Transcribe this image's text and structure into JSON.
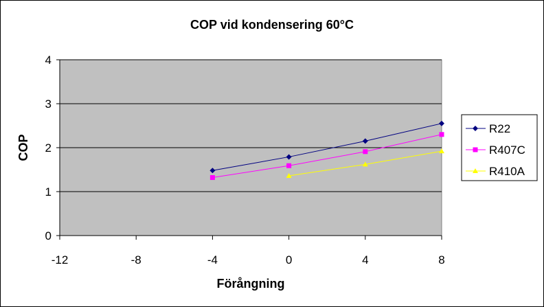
{
  "chart_data": {
    "type": "line",
    "title": "COP vid kondensering 60°C",
    "xlabel": "Förångning",
    "ylabel": "COP",
    "xlim": [
      -12,
      8
    ],
    "ylim": [
      0,
      4
    ],
    "xticks": [
      "-12",
      "-8",
      "-4",
      "0",
      "4",
      "8"
    ],
    "yticks": [
      "0",
      "1",
      "2",
      "3",
      "4"
    ],
    "grid": true,
    "legend_position": "right",
    "plot_background": "#c0c0c0",
    "series": [
      {
        "name": "R22",
        "color": "#000080",
        "marker": "diamond",
        "x": [
          -4,
          0,
          4,
          8
        ],
        "values": [
          1.48,
          1.79,
          2.15,
          2.55
        ]
      },
      {
        "name": "R407C",
        "color": "#ff00ff",
        "marker": "square",
        "x": [
          -4,
          0,
          4,
          8
        ],
        "values": [
          1.32,
          1.59,
          1.91,
          2.3
        ]
      },
      {
        "name": "R410A",
        "color": "#ffff00",
        "marker": "triangle",
        "x": [
          0,
          4,
          8
        ],
        "values": [
          1.36,
          1.62,
          1.92
        ]
      }
    ]
  }
}
